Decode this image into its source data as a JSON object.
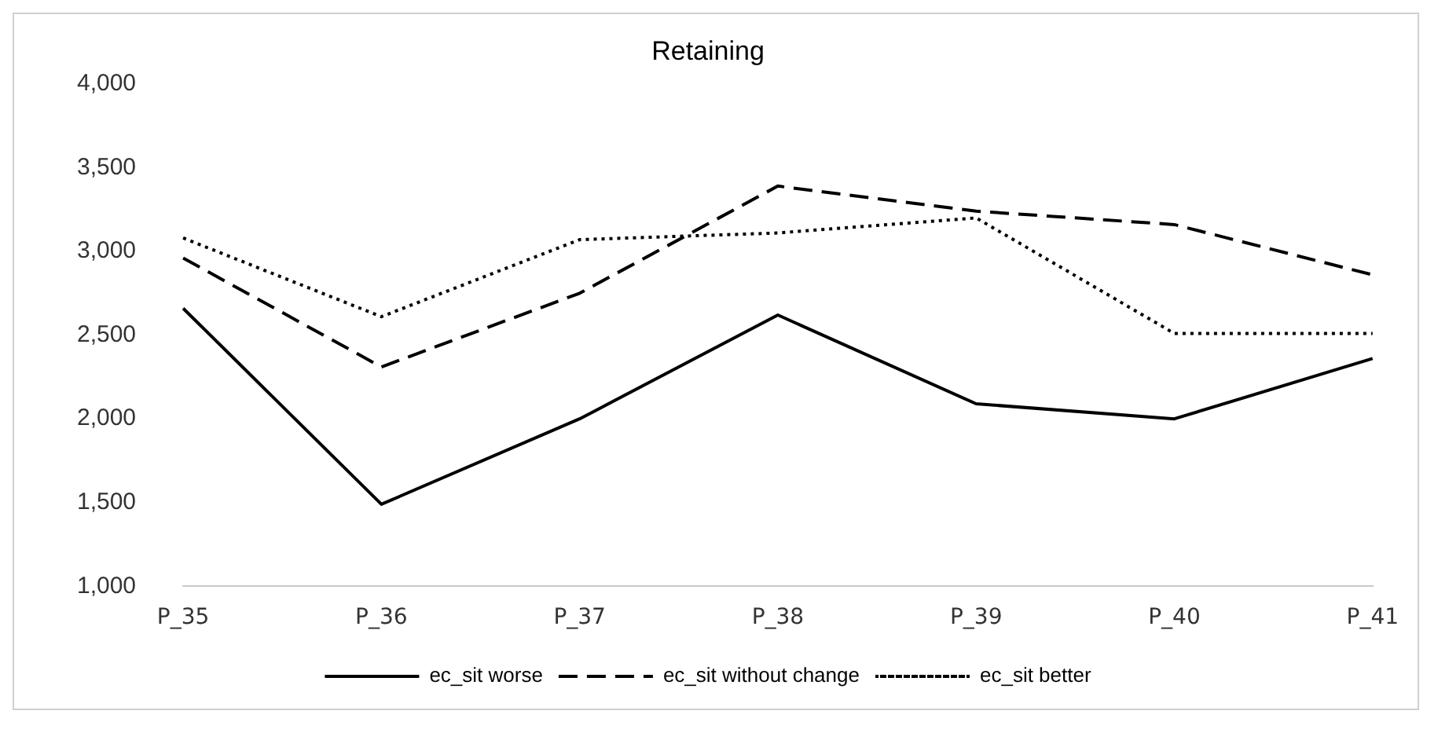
{
  "chart_data": {
    "type": "line",
    "title": "Retaining",
    "categories": [
      "P_35",
      "P_36",
      "P_37",
      "P_38",
      "P_39",
      "P_40",
      "P_41"
    ],
    "series": [
      {
        "name": "ec_sit worse",
        "color": "#000000",
        "line_style": "solid",
        "values": [
          2660,
          1490,
          2000,
          2620,
          2090,
          2000,
          2360
        ]
      },
      {
        "name": "ec_sit without change",
        "color": "#000000",
        "line_style": "dashed",
        "values": [
          2960,
          2310,
          2750,
          3390,
          3240,
          3160,
          2860
        ]
      },
      {
        "name": "ec_sit better",
        "color": "#000000",
        "line_style": "dotted",
        "values": [
          3080,
          2610,
          3070,
          3110,
          3200,
          2510,
          2510
        ]
      }
    ],
    "ylim": [
      1000,
      4000
    ],
    "yticks": [
      {
        "value": 1000,
        "label": "1,000"
      },
      {
        "value": 1500,
        "label": "1,500"
      },
      {
        "value": 2000,
        "label": "2,000"
      },
      {
        "value": 2500,
        "label": "2,500"
      },
      {
        "value": 3000,
        "label": "3,000"
      },
      {
        "value": 3500,
        "label": "3,500"
      },
      {
        "value": 4000,
        "label": "4,000"
      }
    ],
    "grid": false,
    "legend": "bottom",
    "marker": "none"
  }
}
